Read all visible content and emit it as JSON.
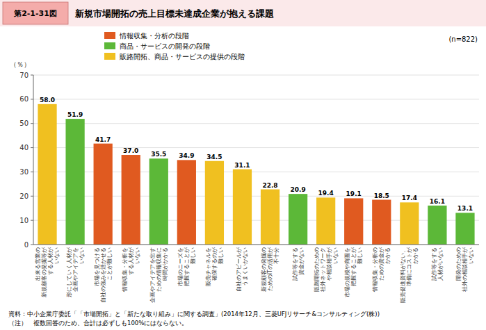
{
  "chart_data": {
    "type": "bar",
    "title": "新規市場開拓の売上目標未達成企業が抱える課題",
    "annotations": [
      "第2-1-31図",
      "(n=822)",
      "資料：中小企業庁委託「「市場開拓」と「新たな取り組み」に関する調査」(2014年12月、三菱UFJリサーチ&コンサルティング(株))",
      "（注）　複数回答のため、合計は必ずしも100%にはならない。"
    ],
    "ylabel": "（％）",
    "categories": [
      "出来る営業の\n新規顧客の発掘等が\nする人材が\nいない",
      "形にしていく人材が\n企画やアイデアを\nいない",
      "市場を見つける\n自社の強みを活かせる\nことが難しい",
      "情報収集・分析を\nする人材が\nいない",
      "企画やアイデアを出す\nための情報収集に\n時間がかかる",
      "市場のニーズを\n把握することが\n難しい",
      "販売チャネルを\n確保するのが\n難しい",
      "自社のアピールが\nうまくいかない",
      "新規顧客の発掘の\nためのITの活用が\n不十分",
      "試作等をする\n資金がない",
      "販路開拓のための\n社外ネットワーク\nや相談相手が\nいない",
      "市場の規模や商圏を\n把握することが\n難しい",
      "情報収集・分析の\nための資金が\nかかる",
      "販売促進資料がない、\n準備にコストが\nかかる",
      "試作等をする\n人材がいない",
      "開発のための\n社外の相談相手が\nいない"
    ],
    "series": [
      {
        "name": "情報収集・分析の段階",
        "color": "#E05A20",
        "values": [
          null,
          null,
          41.7,
          37.0,
          null,
          34.9,
          null,
          null,
          null,
          null,
          null,
          19.1,
          18.5,
          null,
          null,
          null
        ],
        "value_labels": [
          null,
          null,
          "41.7",
          "37.0",
          null,
          "34.9",
          null,
          null,
          null,
          null,
          null,
          "19.1",
          "18.5",
          null,
          null,
          null
        ]
      },
      {
        "name": "商品・サービスの開発の段階",
        "color": "#5CB838",
        "values": [
          null,
          51.9,
          null,
          null,
          35.5,
          null,
          null,
          null,
          null,
          20.9,
          null,
          null,
          null,
          null,
          16.1,
          13.1
        ],
        "value_labels": [
          null,
          "51.9",
          null,
          null,
          "35.5",
          null,
          null,
          null,
          null,
          "20.9",
          null,
          null,
          null,
          null,
          "16.1",
          "13.1"
        ]
      },
      {
        "name": "販路開拓、商品・サービスの提供の段階",
        "color": "#F0C020",
        "values": [
          58.0,
          null,
          null,
          null,
          null,
          null,
          34.5,
          31.1,
          22.8,
          null,
          19.4,
          null,
          null,
          17.4,
          null,
          null
        ],
        "value_labels": [
          "58.0",
          null,
          null,
          null,
          null,
          null,
          "34.5",
          "31.1",
          "22.8",
          null,
          "19.4",
          null,
          null,
          "17.4",
          null,
          null
        ]
      }
    ],
    "ylim": [
      0,
      70
    ],
    "yticks": [
      0,
      10,
      20,
      30,
      40,
      50,
      60,
      70
    ],
    "grid": true,
    "legend": "top",
    "data_labels": true
  }
}
